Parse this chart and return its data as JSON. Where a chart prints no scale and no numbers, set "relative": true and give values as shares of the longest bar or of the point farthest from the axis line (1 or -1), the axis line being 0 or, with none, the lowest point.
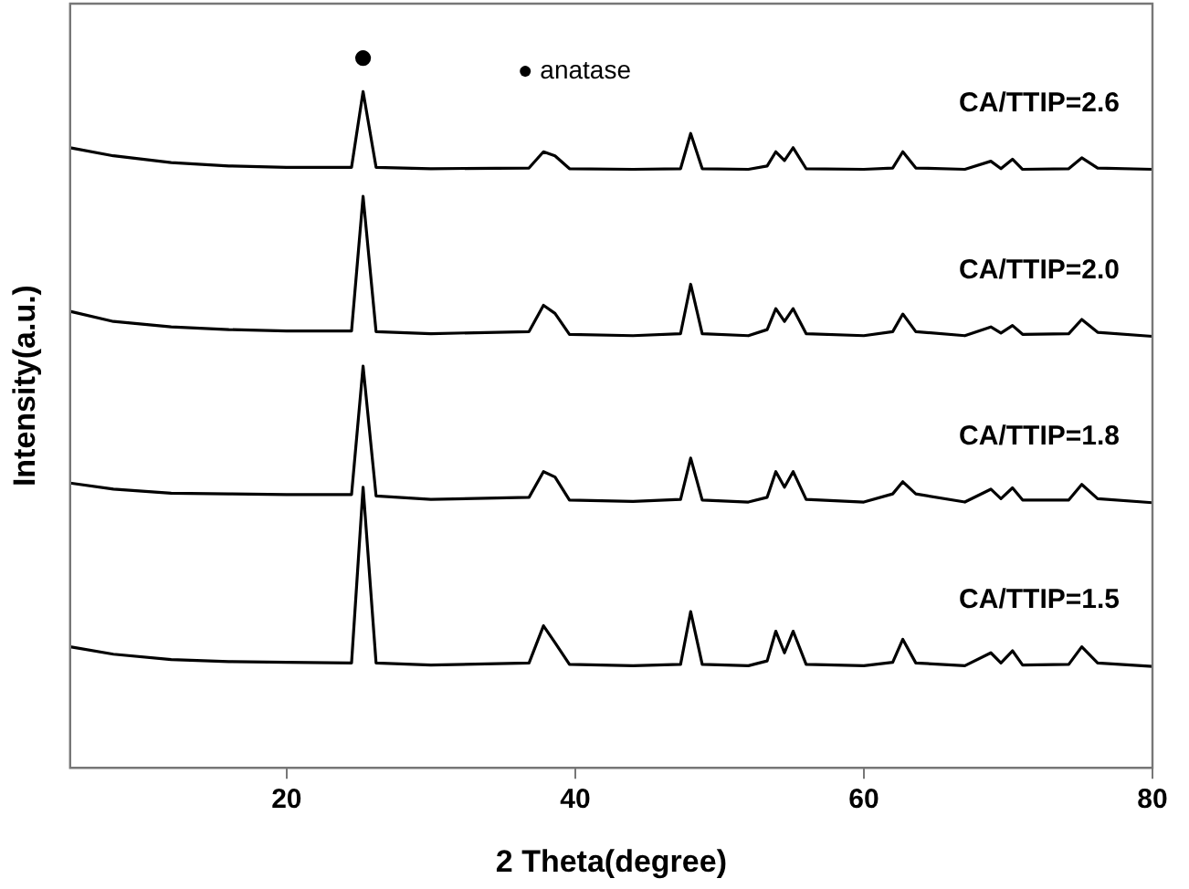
{
  "chart_data": {
    "type": "line",
    "xlabel": "2 Theta(degree)",
    "ylabel": "Intensity(a.u.)",
    "relative": true,
    "xlim": [
      5,
      80
    ],
    "xticks": [
      20,
      40,
      60,
      80
    ],
    "grid": false,
    "legend": false,
    "marker": "none",
    "line_style": "solid",
    "x": [
      5,
      8,
      12,
      16,
      20,
      24.5,
      25.3,
      26.2,
      30,
      36.8,
      37.8,
      38.6,
      39.6,
      44,
      47.3,
      48,
      48.8,
      52,
      53.3,
      53.9,
      54.5,
      55.1,
      56,
      60,
      62,
      62.7,
      63.6,
      67,
      68.8,
      69.5,
      70.3,
      71,
      74.2,
      75.1,
      76.2,
      80
    ],
    "series": [
      {
        "name": "CA/TTIP=2.6",
        "color": "#000000",
        "values": [
          0.917,
          0.905,
          0.895,
          0.89,
          0.888,
          0.888,
          1.0,
          0.888,
          0.886,
          0.887,
          0.911,
          0.905,
          0.886,
          0.885,
          0.886,
          0.938,
          0.886,
          0.885,
          0.89,
          0.911,
          0.898,
          0.917,
          0.886,
          0.885,
          0.887,
          0.911,
          0.887,
          0.885,
          0.897,
          0.886,
          0.9,
          0.885,
          0.886,
          0.902,
          0.887,
          0.885
        ]
      },
      {
        "name": "CA/TTIP=2.0",
        "color": "#000000",
        "values": [
          0.675,
          0.66,
          0.652,
          0.648,
          0.646,
          0.646,
          0.845,
          0.645,
          0.642,
          0.645,
          0.684,
          0.672,
          0.641,
          0.639,
          0.642,
          0.715,
          0.642,
          0.639,
          0.648,
          0.679,
          0.66,
          0.679,
          0.642,
          0.639,
          0.645,
          0.671,
          0.645,
          0.639,
          0.652,
          0.643,
          0.654,
          0.641,
          0.642,
          0.663,
          0.644,
          0.638
        ]
      },
      {
        "name": "CA/TTIP=1.8",
        "color": "#000000",
        "values": [
          0.421,
          0.412,
          0.406,
          0.405,
          0.404,
          0.404,
          0.594,
          0.402,
          0.397,
          0.4,
          0.438,
          0.43,
          0.396,
          0.394,
          0.397,
          0.458,
          0.396,
          0.393,
          0.4,
          0.438,
          0.415,
          0.438,
          0.397,
          0.393,
          0.405,
          0.423,
          0.405,
          0.393,
          0.412,
          0.398,
          0.414,
          0.396,
          0.396,
          0.419,
          0.398,
          0.392
        ]
      },
      {
        "name": "CA/TTIP=1.5",
        "color": "#000000",
        "values": [
          0.179,
          0.168,
          0.16,
          0.157,
          0.156,
          0.155,
          0.415,
          0.155,
          0.152,
          0.155,
          0.21,
          0.185,
          0.153,
          0.151,
          0.153,
          0.231,
          0.153,
          0.151,
          0.158,
          0.202,
          0.17,
          0.202,
          0.153,
          0.151,
          0.156,
          0.19,
          0.155,
          0.151,
          0.17,
          0.155,
          0.173,
          0.152,
          0.153,
          0.179,
          0.155,
          0.15
        ]
      }
    ],
    "annotations": [
      {
        "text": "●",
        "x": 25.3,
        "y": 1.0
      },
      "● anatase"
    ]
  }
}
